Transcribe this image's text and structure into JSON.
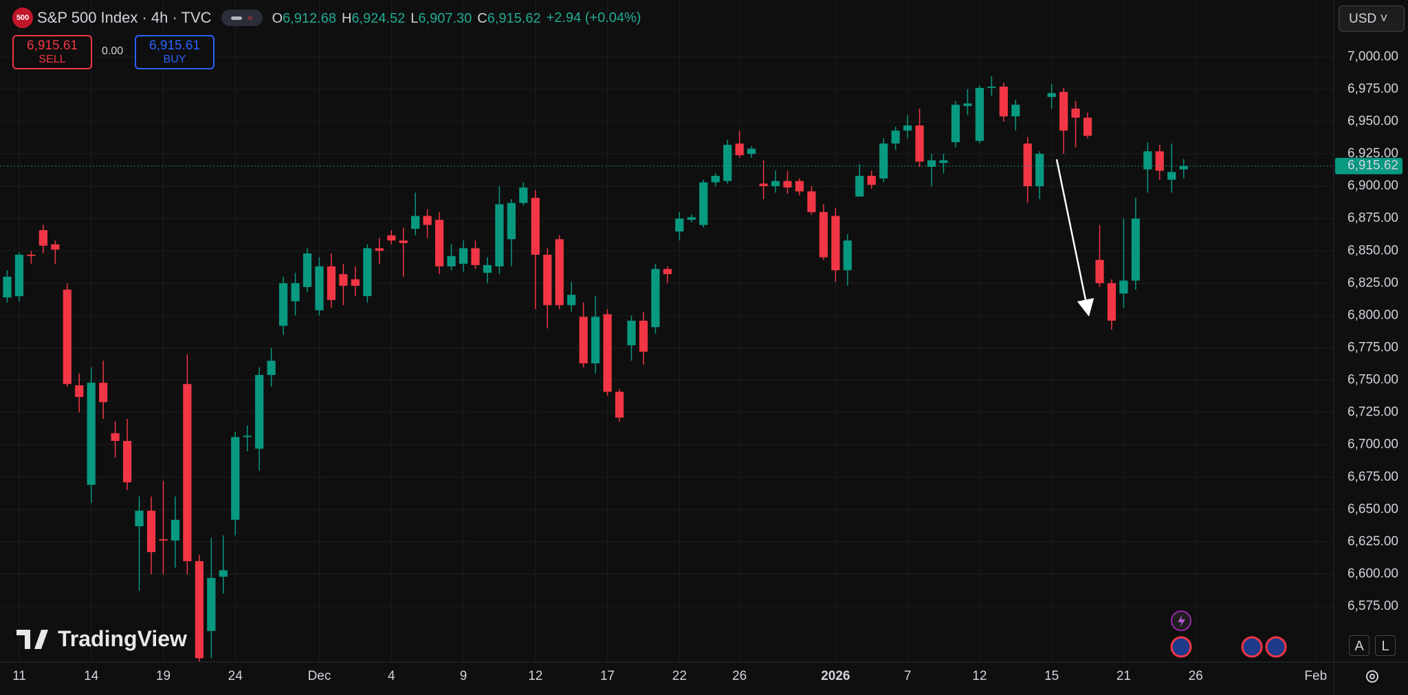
{
  "header": {
    "symbol_icon": "500",
    "title": "S&P 500 Index · 4h · TVC",
    "ohlc": [
      {
        "label": "O",
        "value": "6,912.68"
      },
      {
        "label": "H",
        "value": "6,924.52"
      },
      {
        "label": "L",
        "value": "6,907.30"
      },
      {
        "label": "C",
        "value": "6,915.62"
      }
    ],
    "change": "+2.94 (+0.04%)"
  },
  "trade": {
    "sell_price": "6,915.61",
    "sell": "SELL",
    "spread": "0.00",
    "buy_price": "6,915.61",
    "buy": "BUY"
  },
  "currency": "USD",
  "watermark": "TradingView",
  "buttons": [
    "A",
    "L"
  ],
  "chart_data": {
    "type": "candlestick",
    "up_color": "#089981",
    "down_color": "#f23645",
    "grid": true,
    "xlim": [
      -0.6,
      110.5
    ],
    "ylim": [
      6532,
      7044
    ],
    "yticks": [
      {
        "value": 6575,
        "label": "6,575.00"
      },
      {
        "value": 6600,
        "label": "6,600.00"
      },
      {
        "value": 6625,
        "label": "6,625.00"
      },
      {
        "value": 6650,
        "label": "6,650.00"
      },
      {
        "value": 6675,
        "label": "6,675.00"
      },
      {
        "value": 6700,
        "label": "6,700.00"
      },
      {
        "value": 6725,
        "label": "6,725.00"
      },
      {
        "value": 6750,
        "label": "6,750.00"
      },
      {
        "value": 6775,
        "label": "6,775.00"
      },
      {
        "value": 6800,
        "label": "6,800.00"
      },
      {
        "value": 6825,
        "label": "6,825.00"
      },
      {
        "value": 6850,
        "label": "6,850.00"
      },
      {
        "value": 6875,
        "label": "6,875.00"
      },
      {
        "value": 6900,
        "label": "6,900.00"
      },
      {
        "value": 6925,
        "label": "6,925.00"
      },
      {
        "value": 6950,
        "label": "6,950.00"
      },
      {
        "value": 6975,
        "label": "6,975.00"
      },
      {
        "value": 7000,
        "label": "7,000.00"
      }
    ],
    "xticks": [
      {
        "value": 1,
        "label": "11"
      },
      {
        "value": 7,
        "label": "14"
      },
      {
        "value": 13,
        "label": "19"
      },
      {
        "value": 19,
        "label": "24"
      },
      {
        "value": 26,
        "label": "Dec"
      },
      {
        "value": 32,
        "label": "4"
      },
      {
        "value": 38,
        "label": "9"
      },
      {
        "value": 44,
        "label": "12"
      },
      {
        "value": 50,
        "label": "17"
      },
      {
        "value": 56,
        "label": "22"
      },
      {
        "value": 61,
        "label": "26"
      },
      {
        "value": 69,
        "label": "2026"
      },
      {
        "value": 75,
        "label": "7"
      },
      {
        "value": 81,
        "label": "12"
      },
      {
        "value": 87,
        "label": "15"
      },
      {
        "value": 93,
        "label": "21"
      },
      {
        "value": 99,
        "label": "26"
      },
      {
        "value": 109,
        "label": "Feb"
      }
    ],
    "last_price": {
      "value": 6915.62,
      "label": "6,915.62"
    },
    "candles": [
      {
        "o": 6814,
        "h": 6835,
        "l": 6810,
        "c": 6830
      },
      {
        "o": 6815,
        "h": 6849,
        "l": 6811,
        "c": 6847
      },
      {
        "o": 6847,
        "h": 6850,
        "l": 6840,
        "c": 6846
      },
      {
        "o": 6866,
        "h": 6870,
        "l": 6848,
        "c": 6854
      },
      {
        "o": 6855,
        "h": 6858,
        "l": 6840,
        "c": 6851
      },
      {
        "o": 6820,
        "h": 6825,
        "l": 6745,
        "c": 6747
      },
      {
        "o": 6746,
        "h": 6755,
        "l": 6725,
        "c": 6737
      },
      {
        "o": 6669,
        "h": 6760,
        "l": 6655,
        "c": 6748
      },
      {
        "o": 6748,
        "h": 6765,
        "l": 6720,
        "c": 6733
      },
      {
        "o": 6709,
        "h": 6718,
        "l": 6690,
        "c": 6703
      },
      {
        "o": 6703,
        "h": 6720,
        "l": 6665,
        "c": 6671
      },
      {
        "o": 6637,
        "h": 6660,
        "l": 6587,
        "c": 6649
      },
      {
        "o": 6649,
        "h": 6660,
        "l": 6600,
        "c": 6617
      },
      {
        "o": 6627,
        "h": 6672,
        "l": 6600,
        "c": 6626
      },
      {
        "o": 6626,
        "h": 6660,
        "l": 6605,
        "c": 6642
      },
      {
        "o": 6747,
        "h": 6770,
        "l": 6600,
        "c": 6610
      },
      {
        "o": 6610,
        "h": 6615,
        "l": 6532,
        "c": 6535
      },
      {
        "o": 6556,
        "h": 6628,
        "l": 6535,
        "c": 6597
      },
      {
        "o": 6598,
        "h": 6630,
        "l": 6585,
        "c": 6603
      },
      {
        "o": 6642,
        "h": 6710,
        "l": 6630,
        "c": 6706
      },
      {
        "o": 6706,
        "h": 6715,
        "l": 6695,
        "c": 6707
      },
      {
        "o": 6697,
        "h": 6760,
        "l": 6680,
        "c": 6754
      },
      {
        "o": 6754,
        "h": 6775,
        "l": 6745,
        "c": 6765
      },
      {
        "o": 6792,
        "h": 6830,
        "l": 6785,
        "c": 6825
      },
      {
        "o": 6811,
        "h": 6833,
        "l": 6800,
        "c": 6825
      },
      {
        "o": 6822,
        "h": 6852,
        "l": 6818,
        "c": 6848
      },
      {
        "o": 6804,
        "h": 6845,
        "l": 6800,
        "c": 6838
      },
      {
        "o": 6838,
        "h": 6848,
        "l": 6806,
        "c": 6812
      },
      {
        "o": 6832,
        "h": 6840,
        "l": 6808,
        "c": 6823
      },
      {
        "o": 6828,
        "h": 6838,
        "l": 6815,
        "c": 6823
      },
      {
        "o": 6815,
        "h": 6855,
        "l": 6810,
        "c": 6852
      },
      {
        "o": 6852,
        "h": 6860,
        "l": 6840,
        "c": 6850
      },
      {
        "o": 6862,
        "h": 6866,
        "l": 6855,
        "c": 6858
      },
      {
        "o": 6858,
        "h": 6868,
        "l": 6830,
        "c": 6856
      },
      {
        "o": 6867,
        "h": 6895,
        "l": 6862,
        "c": 6877
      },
      {
        "o": 6877,
        "h": 6882,
        "l": 6860,
        "c": 6870
      },
      {
        "o": 6874,
        "h": 6880,
        "l": 6832,
        "c": 6838
      },
      {
        "o": 6838,
        "h": 6855,
        "l": 6835,
        "c": 6846
      },
      {
        "o": 6840,
        "h": 6858,
        "l": 6834,
        "c": 6852
      },
      {
        "o": 6852,
        "h": 6858,
        "l": 6836,
        "c": 6839
      },
      {
        "o": 6833,
        "h": 6845,
        "l": 6825,
        "c": 6839
      },
      {
        "o": 6838,
        "h": 6900,
        "l": 6832,
        "c": 6886
      },
      {
        "o": 6859,
        "h": 6890,
        "l": 6838,
        "c": 6887
      },
      {
        "o": 6887,
        "h": 6903,
        "l": 6885,
        "c": 6899
      },
      {
        "o": 6891,
        "h": 6897,
        "l": 6805,
        "c": 6847
      },
      {
        "o": 6847,
        "h": 6852,
        "l": 6790,
        "c": 6808
      },
      {
        "o": 6859,
        "h": 6862,
        "l": 6805,
        "c": 6808
      },
      {
        "o": 6808,
        "h": 6826,
        "l": 6803,
        "c": 6816
      },
      {
        "o": 6799,
        "h": 6810,
        "l": 6760,
        "c": 6763
      },
      {
        "o": 6763,
        "h": 6815,
        "l": 6755,
        "c": 6799
      },
      {
        "o": 6801,
        "h": 6805,
        "l": 6738,
        "c": 6741
      },
      {
        "o": 6741,
        "h": 6743,
        "l": 6718,
        "c": 6721
      },
      {
        "o": 6777,
        "h": 6800,
        "l": 6765,
        "c": 6796
      },
      {
        "o": 6796,
        "h": 6803,
        "l": 6762,
        "c": 6772
      },
      {
        "o": 6791,
        "h": 6840,
        "l": 6786,
        "c": 6836
      },
      {
        "o": 6836,
        "h": 6838,
        "l": 6825,
        "c": 6832
      },
      {
        "o": 6865,
        "h": 6880,
        "l": 6858,
        "c": 6875
      },
      {
        "o": 6874,
        "h": 6878,
        "l": 6872,
        "c": 6876
      },
      {
        "o": 6870,
        "h": 6905,
        "l": 6868,
        "c": 6903
      },
      {
        "o": 6903,
        "h": 6910,
        "l": 6900,
        "c": 6908
      },
      {
        "o": 6904,
        "h": 6936,
        "l": 6902,
        "c": 6932
      },
      {
        "o": 6933,
        "h": 6943,
        "l": 6922,
        "c": 6924
      },
      {
        "o": 6925,
        "h": 6931,
        "l": 6922,
        "c": 6929
      },
      {
        "o": 6902,
        "h": 6920,
        "l": 6890,
        "c": 6900
      },
      {
        "o": 6900,
        "h": 6912,
        "l": 6895,
        "c": 6904
      },
      {
        "o": 6904,
        "h": 6912,
        "l": 6894,
        "c": 6899
      },
      {
        "o": 6904,
        "h": 6906,
        "l": 6893,
        "c": 6896
      },
      {
        "o": 6896,
        "h": 6900,
        "l": 6878,
        "c": 6880
      },
      {
        "o": 6880,
        "h": 6886,
        "l": 6843,
        "c": 6845
      },
      {
        "o": 6877,
        "h": 6883,
        "l": 6826,
        "c": 6835
      },
      {
        "o": 6835,
        "h": 6863,
        "l": 6823,
        "c": 6858
      },
      {
        "o": 6892,
        "h": 6917,
        "l": 6892,
        "c": 6908
      },
      {
        "o": 6908,
        "h": 6912,
        "l": 6898,
        "c": 6901
      },
      {
        "o": 6906,
        "h": 6937,
        "l": 6903,
        "c": 6933
      },
      {
        "o": 6933,
        "h": 6946,
        "l": 6928,
        "c": 6943
      },
      {
        "o": 6943,
        "h": 6955,
        "l": 6937,
        "c": 6947
      },
      {
        "o": 6947,
        "h": 6960,
        "l": 6915,
        "c": 6919
      },
      {
        "o": 6915,
        "h": 6925,
        "l": 6900,
        "c": 6920
      },
      {
        "o": 6918,
        "h": 6925,
        "l": 6910,
        "c": 6920
      },
      {
        "o": 6934,
        "h": 6966,
        "l": 6930,
        "c": 6963
      },
      {
        "o": 6962,
        "h": 6975,
        "l": 6955,
        "c": 6964
      },
      {
        "o": 6935,
        "h": 6978,
        "l": 6933,
        "c": 6976
      },
      {
        "o": 6976,
        "h": 6985,
        "l": 6970,
        "c": 6977
      },
      {
        "o": 6977,
        "h": 6980,
        "l": 6950,
        "c": 6954
      },
      {
        "o": 6954,
        "h": 6967,
        "l": 6943,
        "c": 6963
      },
      {
        "o": 6933,
        "h": 6938,
        "l": 6887,
        "c": 6900
      },
      {
        "o": 6900,
        "h": 6927,
        "l": 6890,
        "c": 6925
      },
      {
        "o": 6969,
        "h": 6979,
        "l": 6960,
        "c": 6972
      },
      {
        "o": 6973,
        "h": 6976,
        "l": 6925,
        "c": 6943
      },
      {
        "o": 6960,
        "h": 6966,
        "l": 6930,
        "c": 6953
      },
      {
        "o": 6953,
        "h": 6957,
        "l": 6937,
        "c": 6939
      },
      {
        "o": 6843,
        "h": 6870,
        "l": 6822,
        "c": 6825
      },
      {
        "o": 6825,
        "h": 6828,
        "l": 6789,
        "c": 6796
      },
      {
        "o": 6817,
        "h": 6875,
        "l": 6806,
        "c": 6827
      },
      {
        "o": 6827,
        "h": 6891,
        "l": 6820,
        "c": 6875
      },
      {
        "o": 6913,
        "h": 6934,
        "l": 6895,
        "c": 6927
      },
      {
        "o": 6927,
        "h": 6932,
        "l": 6905,
        "c": 6912
      },
      {
        "o": 6905,
        "h": 6933,
        "l": 6895,
        "c": 6911
      },
      {
        "o": 6913,
        "h": 6921,
        "l": 6906,
        "c": 6915.62
      }
    ]
  }
}
